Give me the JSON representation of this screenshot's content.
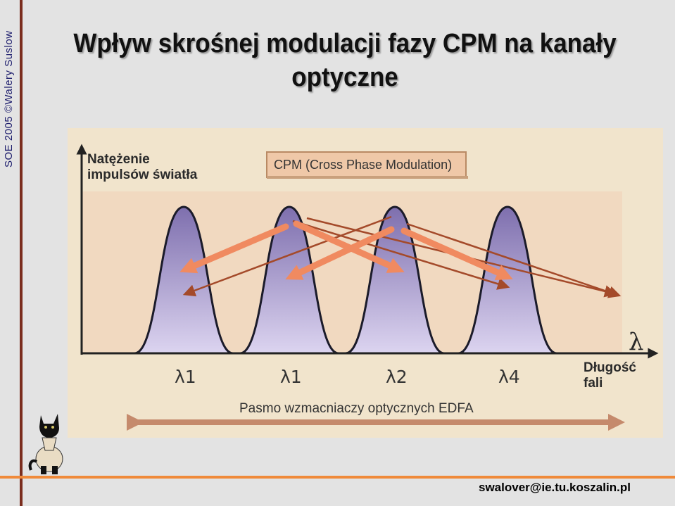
{
  "slide": {
    "side_text": "SOE 2005 ©Walery Suslow",
    "title_line1": "Wpływ skrośnej modulacji fazy CPM na kanały",
    "title_line2": "optyczne",
    "email": "swalover@ie.tu.koszalin.pl"
  },
  "diagram": {
    "y_axis_label_line1": "Natężenie",
    "y_axis_label_line2": "impulsów światła",
    "box_label": "CPM (Cross Phase Modulation)",
    "lambda_symbol": "λ",
    "x_axis_label_line1": "Długość",
    "x_axis_label_line2": "fali",
    "channels": [
      "λ1",
      "λ1",
      "λ2",
      "λ4"
    ],
    "band_label": "Pasmo wzmacniaczy optycznych EDFA"
  },
  "colors": {
    "panel": "#f1e4cc",
    "plot_area": "#f1d9c0",
    "pulse_top": "#7e6fae",
    "pulse_bottom": "#d7cfee",
    "thick_arrow": "#f08a60",
    "thin_arrow": "#a44a2a",
    "title_text": "#111111",
    "side_text": "#1d1d6d"
  },
  "icons": [
    "cat-icon"
  ]
}
